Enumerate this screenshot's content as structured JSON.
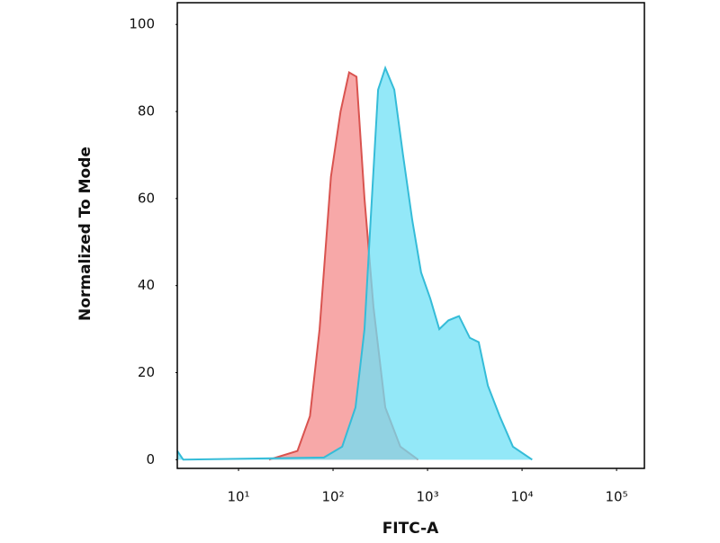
{
  "chart_data": {
    "type": "area",
    "x_label": "FITC-A",
    "y_label": "Normalized To Mode",
    "xscale": "log",
    "xlim": [
      2.25,
      197000
    ],
    "ylim": [
      -2,
      105
    ],
    "xticks": [
      {
        "value": 10,
        "label": "10¹"
      },
      {
        "value": 100,
        "label": "10²"
      },
      {
        "value": 1000,
        "label": "10³"
      },
      {
        "value": 10000,
        "label": "10⁴"
      },
      {
        "value": 100000,
        "label": "10⁵"
      }
    ],
    "yticks": [
      0,
      20,
      40,
      60,
      80,
      100
    ],
    "series": [
      {
        "color": "#d9534f",
        "fill": "#f7a3a3",
        "x": [
          21,
          42,
          57,
          72,
          95,
          120,
          148,
          177,
          215,
          268,
          357,
          515,
          795
        ],
        "values": [
          0,
          2,
          10,
          30,
          65,
          80,
          89,
          88,
          60,
          35,
          12,
          3,
          0
        ]
      },
      {
        "color": "#35bcd8",
        "fill": "#6fe0f6",
        "x": [
          2.25,
          2.6,
          80,
          125,
          173,
          215,
          250,
          300,
          357,
          445,
          550,
          690,
          855,
          1070,
          1330,
          1660,
          2150,
          2800,
          3480,
          4350,
          5800,
          8000,
          12800
        ],
        "values": [
          2,
          0,
          0.5,
          3,
          12,
          30,
          55,
          85,
          90,
          85,
          70,
          55,
          43,
          37,
          30,
          32,
          33,
          28,
          27,
          17,
          10,
          3,
          0
        ]
      }
    ]
  }
}
